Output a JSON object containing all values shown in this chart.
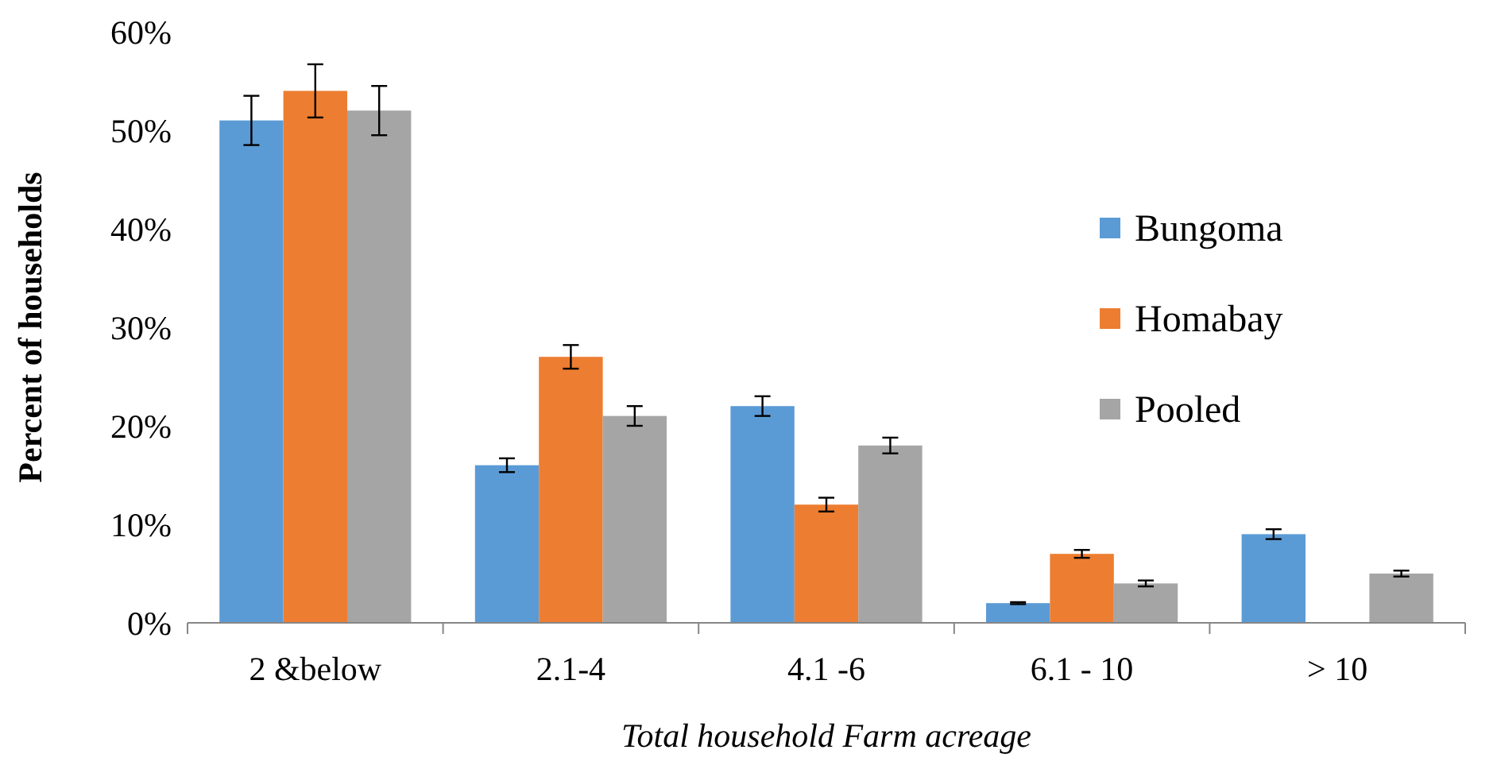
{
  "chart_data": {
    "type": "bar",
    "xlabel": "Total household Farm acreage",
    "ylabel": "Percent of households",
    "categories": [
      "2 &below",
      "2.1-4",
      "4.1 -6",
      "6.1 - 10",
      "> 10"
    ],
    "series": [
      {
        "name": "Bungoma",
        "color": "#5b9bd5",
        "values": [
          51,
          16,
          22,
          2,
          9
        ],
        "errors": [
          2.5,
          0.7,
          1,
          0.1,
          0.5
        ]
      },
      {
        "name": "Homabay",
        "color": "#ed7d31",
        "values": [
          54,
          27,
          12,
          7,
          null
        ],
        "errors": [
          2.7,
          1.2,
          0.7,
          0.4,
          null
        ]
      },
      {
        "name": "Pooled",
        "color": "#a5a5a5",
        "values": [
          52,
          21,
          18,
          4,
          5
        ],
        "errors": [
          2.5,
          1,
          0.8,
          0.3,
          0.3
        ]
      }
    ],
    "ylim": [
      0,
      60
    ],
    "yticks": [
      {
        "value": 0,
        "label": "0%"
      },
      {
        "value": 10,
        "label": "10%"
      },
      {
        "value": 20,
        "label": "20%"
      },
      {
        "value": 30,
        "label": "30%"
      },
      {
        "value": 40,
        "label": "40%"
      },
      {
        "value": 50,
        "label": "50%"
      },
      {
        "value": 60,
        "label": "60%"
      }
    ],
    "legend": "right",
    "grid": false
  }
}
